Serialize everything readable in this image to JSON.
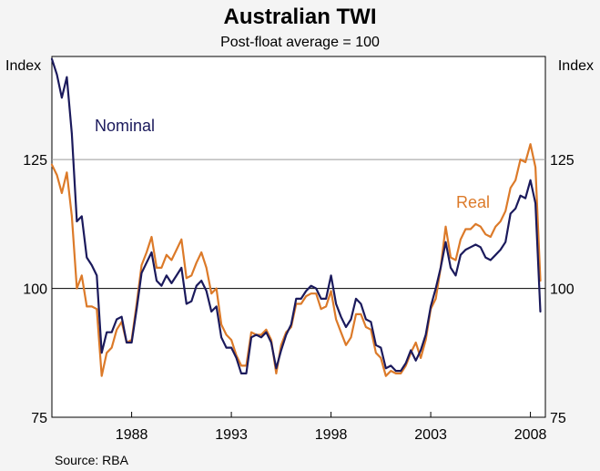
{
  "chart_data": {
    "type": "line",
    "title": "Australian TWI",
    "subtitle": "Post-float average = 100",
    "ylabel_left": "Index",
    "ylabel_right": "Index",
    "source": "Source: RBA",
    "xlim": [
      1984.0,
      2008.75
    ],
    "ylim": [
      75,
      145
    ],
    "yticks": [
      75,
      100,
      125
    ],
    "ytick_labels": [
      "75",
      "100",
      "125"
    ],
    "xticks": [
      1988,
      1993,
      1998,
      2003,
      2008
    ],
    "xtick_labels": [
      "1988",
      "1993",
      "1998",
      "2003",
      "2008"
    ],
    "gridlines": [
      100,
      125
    ],
    "series": [
      {
        "name": "Nominal",
        "label": "Nominal",
        "color": "#1b1a5c",
        "x": [
          1984.0,
          1984.25,
          1984.5,
          1984.75,
          1985.0,
          1985.25,
          1985.5,
          1985.75,
          1986.0,
          1986.25,
          1986.5,
          1986.75,
          1987.0,
          1987.25,
          1987.5,
          1987.75,
          1988.0,
          1988.25,
          1988.5,
          1988.75,
          1989.0,
          1989.25,
          1989.5,
          1989.75,
          1990.0,
          1990.25,
          1990.5,
          1990.75,
          1991.0,
          1991.25,
          1991.5,
          1991.75,
          1992.0,
          1992.25,
          1992.5,
          1992.75,
          1993.0,
          1993.25,
          1993.5,
          1993.75,
          1994.0,
          1994.25,
          1994.5,
          1994.75,
          1995.0,
          1995.25,
          1995.5,
          1995.75,
          1996.0,
          1996.25,
          1996.5,
          1996.75,
          1997.0,
          1997.25,
          1997.5,
          1997.75,
          1998.0,
          1998.25,
          1998.5,
          1998.75,
          1999.0,
          1999.25,
          1999.5,
          1999.75,
          2000.0,
          2000.25,
          2000.5,
          2000.75,
          2001.0,
          2001.25,
          2001.5,
          2001.75,
          2002.0,
          2002.25,
          2002.5,
          2002.75,
          2003.0,
          2003.25,
          2003.5,
          2003.75,
          2004.0,
          2004.25,
          2004.5,
          2004.75,
          2005.0,
          2005.25,
          2005.5,
          2005.75,
          2006.0,
          2006.25,
          2006.5,
          2006.75,
          2007.0,
          2007.25,
          2007.5,
          2007.75,
          2008.0,
          2008.25,
          2008.5
        ],
        "values": [
          144.5,
          141.5,
          137,
          141,
          130,
          113,
          114,
          106,
          104.5,
          102.5,
          87.5,
          91.5,
          91.5,
          94,
          94.5,
          89.5,
          89.5,
          96,
          103,
          105,
          107,
          101.5,
          100.5,
          102.5,
          101,
          102.5,
          104,
          97,
          97.5,
          100.5,
          101.5,
          99.5,
          95.5,
          96.5,
          90.5,
          88.5,
          88.5,
          86.5,
          83.5,
          83.5,
          90.5,
          91,
          90.5,
          91.5,
          89.5,
          84.5,
          88,
          91,
          93,
          98,
          98,
          99.5,
          100.5,
          100,
          98,
          98,
          102.5,
          97,
          94.5,
          92.5,
          94,
          98,
          97,
          94,
          93.5,
          89,
          88.5,
          84.5,
          85,
          84,
          84,
          85.5,
          88,
          86,
          88,
          91,
          96.5,
          100,
          104,
          109,
          104,
          102.5,
          106.5,
          107.5,
          108,
          108.5,
          108,
          106,
          105.5,
          106.5,
          107.5,
          109,
          114.5,
          115.5,
          118,
          117.5,
          121,
          116.5,
          95.5
        ]
      },
      {
        "name": "Real",
        "label": "Real",
        "color": "#dc7a29",
        "x": [
          1984.0,
          1984.25,
          1984.5,
          1984.75,
          1985.0,
          1985.25,
          1985.5,
          1985.75,
          1986.0,
          1986.25,
          1986.5,
          1986.75,
          1987.0,
          1987.25,
          1987.5,
          1987.75,
          1988.0,
          1988.25,
          1988.5,
          1988.75,
          1989.0,
          1989.25,
          1989.5,
          1989.75,
          1990.0,
          1990.25,
          1990.5,
          1990.75,
          1991.0,
          1991.25,
          1991.5,
          1991.75,
          1992.0,
          1992.25,
          1992.5,
          1992.75,
          1993.0,
          1993.25,
          1993.5,
          1993.75,
          1994.0,
          1994.25,
          1994.5,
          1994.75,
          1995.0,
          1995.25,
          1995.5,
          1995.75,
          1996.0,
          1996.25,
          1996.5,
          1996.75,
          1997.0,
          1997.25,
          1997.5,
          1997.75,
          1998.0,
          1998.25,
          1998.5,
          1998.75,
          1999.0,
          1999.25,
          1999.5,
          1999.75,
          2000.0,
          2000.25,
          2000.5,
          2000.75,
          2001.0,
          2001.25,
          2001.5,
          2001.75,
          2002.0,
          2002.25,
          2002.5,
          2002.75,
          2003.0,
          2003.25,
          2003.5,
          2003.75,
          2004.0,
          2004.25,
          2004.5,
          2004.75,
          2005.0,
          2005.25,
          2005.5,
          2005.75,
          2006.0,
          2006.25,
          2006.5,
          2006.75,
          2007.0,
          2007.25,
          2007.5,
          2007.75,
          2008.0,
          2008.25,
          2008.5
        ],
        "values": [
          124,
          122,
          118.5,
          122.5,
          114,
          100,
          102.5,
          96.5,
          96.5,
          96,
          83,
          87.5,
          88.5,
          92,
          93.5,
          89.5,
          90,
          97,
          104.5,
          107,
          110,
          104,
          104,
          106.5,
          105.5,
          107.5,
          109.5,
          102,
          102.5,
          105,
          107,
          104,
          99,
          100,
          93,
          91,
          90,
          87,
          85,
          85,
          91.5,
          91,
          91,
          92,
          90,
          83.5,
          89,
          91.5,
          92.5,
          97,
          97,
          98.5,
          99,
          99,
          96,
          96.5,
          99.5,
          94,
          91.5,
          89,
          90.5,
          95,
          95,
          92.5,
          92,
          87.5,
          86.5,
          83,
          84,
          83.5,
          83.5,
          85,
          87.5,
          89.5,
          86.5,
          90,
          96,
          98,
          104,
          112,
          106,
          105.5,
          109.5,
          111.5,
          111.5,
          112.5,
          112,
          110.5,
          110,
          112,
          113,
          115,
          119.5,
          121,
          125,
          124.5,
          128,
          123.5,
          101.5
        ]
      }
    ]
  }
}
